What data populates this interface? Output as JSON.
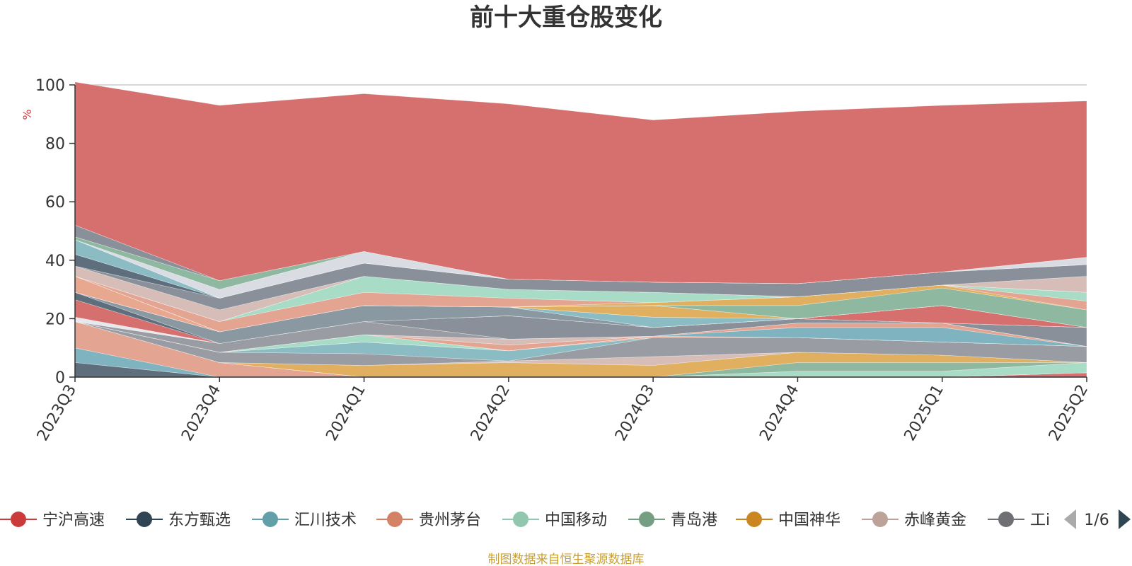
{
  "chart_data": {
    "type": "area",
    "title": "前十大重仓股变化",
    "y_unit": "%",
    "ylim": [
      0,
      100
    ],
    "y_ticks": [
      0,
      20,
      40,
      60,
      80,
      100
    ],
    "grid": true,
    "stacked": true,
    "x": [
      "2023Q3",
      "2023Q4",
      "2024Q1",
      "2024Q2",
      "2024Q3",
      "2024Q4",
      "2025Q1",
      "2025Q2"
    ],
    "series": [
      {
        "name": "宁沪高速",
        "color": "#d5706f",
        "values": [
          0,
          0,
          0,
          0,
          0,
          0,
          0,
          1.5
        ]
      },
      {
        "name": "东方甄选",
        "color": "#5e6e7c",
        "values": [
          5,
          0,
          0,
          0,
          0,
          0,
          0,
          0
        ]
      },
      {
        "name": "汇川技术",
        "color": "#7fb3bf",
        "values": [
          5,
          0,
          0,
          0,
          0,
          0,
          0,
          0
        ]
      },
      {
        "name": "贵州茅台",
        "color": "#e3a492",
        "values": [
          9,
          5,
          0,
          0,
          0,
          0,
          0,
          0
        ]
      },
      {
        "name": "中国移动",
        "color": "#a8dcc6",
        "values": [
          0,
          0,
          0,
          0,
          0,
          2,
          2,
          3.5
        ]
      },
      {
        "name": "青岛港",
        "color": "#8fb8a0",
        "values": [
          0,
          0,
          0,
          0,
          0,
          3,
          3,
          0
        ]
      },
      {
        "name": "中国神华",
        "color": "#e0b060",
        "values": [
          0,
          0,
          4,
          5,
          4,
          3.5,
          2.5,
          0
        ]
      },
      {
        "name": "赤峰黄金",
        "color": "#d6bdb8",
        "values": [
          0,
          0,
          0,
          0.5,
          3,
          0,
          0,
          0
        ]
      },
      {
        "name": "工商银行",
        "color": "#9a9ca3",
        "values": [
          0,
          3.5,
          4,
          0,
          6.5,
          5,
          4.5,
          5.5
        ]
      },
      {
        "name": "",
        "color": "#8bbcc4",
        "values": [
          0,
          0,
          4,
          3.5,
          0,
          0,
          0,
          0
        ]
      },
      {
        "name": "",
        "color": "#e3a492",
        "values": [
          0,
          0,
          0,
          0,
          0.5,
          0,
          0,
          0
        ]
      },
      {
        "name": "",
        "color": "#a8dcc6",
        "values": [
          0,
          0,
          2.5,
          0,
          0,
          0,
          0,
          0
        ]
      },
      {
        "name": "",
        "color": "#7fb3bf",
        "values": [
          0,
          0,
          0,
          0,
          0,
          3.5,
          5,
          0
        ]
      },
      {
        "name": "",
        "color": "#e3a492",
        "values": [
          0,
          0,
          0,
          2,
          0,
          1.5,
          1.5,
          0
        ]
      },
      {
        "name": "",
        "color": "#d6bdb8",
        "values": [
          0,
          0,
          0,
          2,
          0,
          0,
          0,
          0
        ]
      },
      {
        "name": "",
        "color": "#9a9ca3",
        "values": [
          0,
          3,
          4.5,
          0,
          0,
          0,
          0,
          0
        ]
      },
      {
        "name": "",
        "color": "#e8e8ec",
        "values": [
          1.5,
          0,
          0,
          0,
          0,
          0,
          0,
          0
        ]
      },
      {
        "name": "",
        "color": "#8a9099",
        "values": [
          0,
          0,
          0,
          8,
          3,
          1.5,
          0,
          6.5
        ]
      },
      {
        "name": "",
        "color": "#d5706f",
        "values": [
          6,
          0,
          0,
          0,
          0,
          0,
          0,
          0
        ]
      },
      {
        "name": "",
        "color": "#5e6e7c",
        "values": [
          2.5,
          0,
          0,
          0,
          0,
          0,
          0,
          0
        ]
      },
      {
        "name": "",
        "color": "#8a98a2",
        "values": [
          0,
          4,
          5.5,
          3,
          0,
          0,
          0,
          0
        ]
      },
      {
        "name": "",
        "color": "#d5706f",
        "values": [
          0,
          0,
          0,
          0,
          0,
          0,
          6,
          0
        ]
      },
      {
        "name": "",
        "color": "#8bbcc4",
        "values": [
          0,
          0,
          0,
          0,
          3.5,
          0,
          0,
          0
        ]
      },
      {
        "name": "",
        "color": "#e3a492",
        "values": [
          0,
          0,
          0,
          0,
          0,
          0,
          0,
          0
        ]
      },
      {
        "name": "",
        "color": "#e0b060",
        "values": [
          0,
          0,
          0,
          0,
          4,
          0,
          0,
          0
        ]
      },
      {
        "name": "",
        "color": "#e8a890",
        "values": [
          5.5,
          0,
          0,
          0,
          0,
          0,
          0,
          0
        ]
      },
      {
        "name": "",
        "color": "#8fb8a0",
        "values": [
          0,
          0,
          0,
          0,
          0,
          4.5,
          6,
          6
        ]
      },
      {
        "name": "",
        "color": "#e0b060",
        "values": [
          0,
          0,
          0,
          0,
          1,
          3,
          1,
          0
        ]
      },
      {
        "name": "",
        "color": "#e3a492",
        "values": [
          0,
          3.5,
          4.5,
          3,
          0,
          0,
          0,
          3
        ]
      },
      {
        "name": "",
        "color": "#a8dcc6",
        "values": [
          0,
          0,
          5.5,
          3,
          3.5,
          0,
          0,
          3
        ]
      },
      {
        "name": "",
        "color": "#8fb8a0",
        "values": [
          0,
          0,
          0,
          0,
          0,
          0,
          0,
          0
        ]
      },
      {
        "name": "",
        "color": "#d6bdb8",
        "values": [
          3.5,
          4,
          0,
          0,
          0,
          0,
          0,
          5.5
        ]
      },
      {
        "name": "",
        "color": "#8a9099",
        "values": [
          0,
          4,
          4.5,
          3.5,
          3.5,
          4.5,
          4.5,
          4
        ]
      },
      {
        "name": "",
        "color": "#5e6e7c",
        "values": [
          4,
          0,
          0,
          0,
          0,
          0,
          0,
          0
        ]
      },
      {
        "name": "",
        "color": "#8bbcc4",
        "values": [
          5,
          0,
          0,
          0,
          0,
          0,
          0,
          0
        ]
      },
      {
        "name": "",
        "color": "#d9dde3",
        "values": [
          0,
          3,
          4,
          0,
          0,
          0,
          0,
          2.5
        ]
      },
      {
        "name": "",
        "color": "#8fb8a0",
        "values": [
          1,
          3,
          0,
          0,
          0,
          0,
          0,
          0
        ]
      },
      {
        "name": "",
        "color": "#8a9099",
        "values": [
          4,
          0,
          0,
          0,
          0,
          0,
          0,
          0
        ]
      },
      {
        "name": "",
        "color": "#d5706f",
        "values": [
          49,
          60,
          54,
          60,
          55.5,
          59,
          57,
          53.5
        ]
      }
    ],
    "legend": {
      "placement": "bottom",
      "page": "1/6",
      "items": [
        {
          "label": "宁沪高速",
          "color": "#cc3b3b"
        },
        {
          "label": "东方甄选",
          "color": "#2f4554"
        },
        {
          "label": "汇川技术",
          "color": "#61a0a8"
        },
        {
          "label": "贵州茅台",
          "color": "#d48265"
        },
        {
          "label": "中国移动",
          "color": "#91c7ae"
        },
        {
          "label": "青岛港",
          "color": "#749f83"
        },
        {
          "label": "中国神华",
          "color": "#ca8622"
        },
        {
          "label": "赤峰黄金",
          "color": "#bda29a"
        },
        {
          "label": "工i",
          "color": "#6e7074"
        }
      ]
    },
    "source": "制图数据来自恒生聚源数据库"
  }
}
